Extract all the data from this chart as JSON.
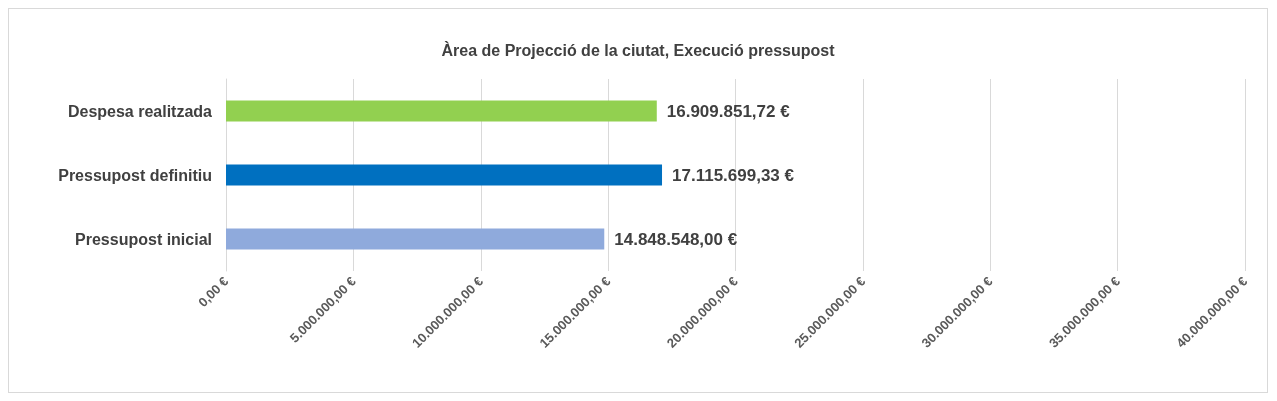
{
  "chart_data": {
    "type": "bar",
    "orientation": "horizontal",
    "title": "Àrea de Projecció de la ciutat, Execució pressupost",
    "categories": [
      "Despesa realitzada",
      "Pressupost definitiu",
      "Pressupost inicial"
    ],
    "values": [
      16909851.72,
      17115699.33,
      14848548.0
    ],
    "colors": [
      "#92d050",
      "#0070c0",
      "#8faadc"
    ],
    "value_labels": [
      "16.909.851,72 €",
      "17.115.699,33 €",
      "14.848.548,00 €"
    ],
    "xlim": [
      0,
      40000000
    ],
    "xticks": [
      {
        "value": 0,
        "label": "0,00 €"
      },
      {
        "value": 5000000,
        "label": "5.000.000,00 €"
      },
      {
        "value": 10000000,
        "label": "10.000.000,00 €"
      },
      {
        "value": 15000000,
        "label": "15.000.000,00 €"
      },
      {
        "value": 20000000,
        "label": "20.000.000,00 €"
      },
      {
        "value": 25000000,
        "label": "25.000.000,00 €"
      },
      {
        "value": 30000000,
        "label": "30.000.000,00 €"
      },
      {
        "value": 35000000,
        "label": "35.000.000,00 €"
      },
      {
        "value": 40000000,
        "label": "40.000.000,00 €"
      }
    ],
    "grid": "x"
  }
}
